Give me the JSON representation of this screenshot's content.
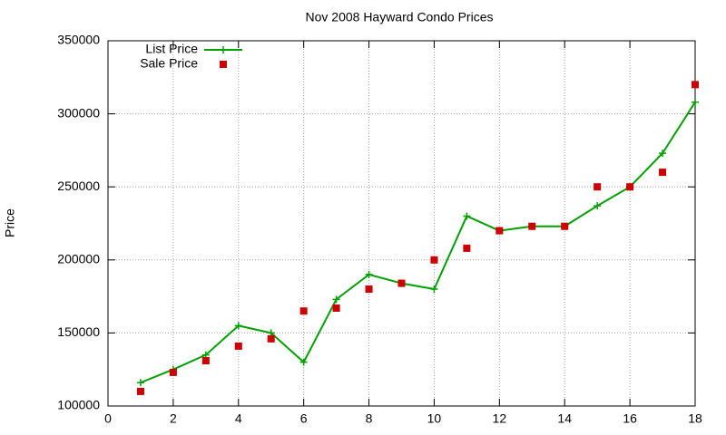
{
  "chart_data": {
    "type": "line",
    "title": "Nov 2008 Hayward Condo Prices",
    "y_label": "Price",
    "x": [
      1,
      2,
      3,
      4,
      5,
      6,
      7,
      8,
      9,
      10,
      11,
      12,
      13,
      14,
      15,
      16,
      17,
      18
    ],
    "series": [
      {
        "name": "List Price",
        "color": "#00a000",
        "style": "linespoints",
        "values": [
          116000,
          125000,
          135000,
          155000,
          150000,
          130000,
          173000,
          190000,
          184000,
          180000,
          230000,
          220000,
          223000,
          223000,
          237000,
          250000,
          273000,
          308000
        ]
      },
      {
        "name": "Sale Price",
        "color": "#cc0000",
        "style": "points",
        "values": [
          110000,
          123000,
          131000,
          141000,
          146000,
          165000,
          167000,
          180000,
          184000,
          200000,
          208000,
          220000,
          223000,
          223000,
          250000,
          250000,
          260000,
          320000
        ]
      }
    ],
    "xlim": [
      0,
      18
    ],
    "xticks": [
      0,
      2,
      4,
      6,
      8,
      10,
      12,
      14,
      16,
      18
    ],
    "ylim": [
      100000,
      350000
    ],
    "yticks": [
      100000,
      150000,
      200000,
      250000,
      300000,
      350000
    ],
    "grid": true,
    "legend": "top-left"
  }
}
